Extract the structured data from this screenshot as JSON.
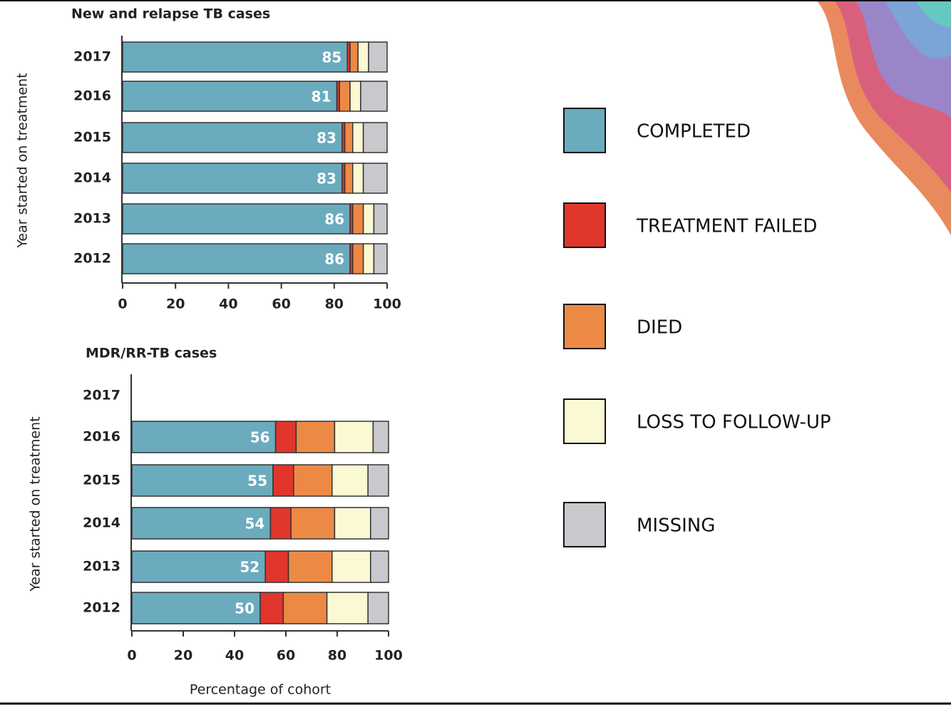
{
  "chart_data": [
    {
      "type": "hbar-stacked",
      "title": "New and relapse TB cases",
      "y_label": "Year started on treatment",
      "categories": [
        "2017",
        "2016",
        "2015",
        "2014",
        "2013",
        "2012"
      ],
      "series": [
        {
          "name": "COMPLETED",
          "color": "#6aabbd",
          "values": [
            85,
            81,
            83,
            83,
            86,
            86
          ]
        },
        {
          "name": "TREATMENT FAILED",
          "color": "#e0362c",
          "values": [
            1,
            1,
            1,
            1,
            1,
            1
          ]
        },
        {
          "name": "DIED",
          "color": "#ec8a45",
          "values": [
            3,
            4,
            3,
            3,
            4,
            4
          ]
        },
        {
          "name": "LOSS TO FOLLOW-UP",
          "color": "#fbf8d4",
          "values": [
            4,
            4,
            4,
            4,
            4,
            4
          ]
        },
        {
          "name": "MISSING",
          "color": "#c9c8cc",
          "values": [
            7,
            10,
            9,
            9,
            5,
            5
          ]
        }
      ],
      "xlim": [
        0,
        100
      ],
      "xticks": [
        0,
        20,
        40,
        60,
        80,
        100
      ]
    },
    {
      "type": "hbar-stacked",
      "title": "MDR/RR-TB cases",
      "y_label": "Year started on treatment",
      "x_label": "Percentage of cohort",
      "categories": [
        "2017",
        "2016",
        "2015",
        "2014",
        "2013",
        "2012"
      ],
      "series": [
        {
          "values": [
            null,
            56,
            55,
            54,
            52,
            50
          ]
        },
        {
          "values": [
            null,
            8,
            8,
            8,
            9,
            9
          ]
        },
        {
          "values": [
            null,
            15,
            15,
            17,
            17,
            17
          ]
        },
        {
          "values": [
            null,
            15,
            14,
            14,
            15,
            16
          ]
        },
        {
          "values": [
            null,
            6,
            8,
            7,
            7,
            8
          ]
        }
      ],
      "xlim": [
        0,
        100
      ],
      "xticks": [
        0,
        20,
        40,
        60,
        80,
        100
      ]
    }
  ]
}
